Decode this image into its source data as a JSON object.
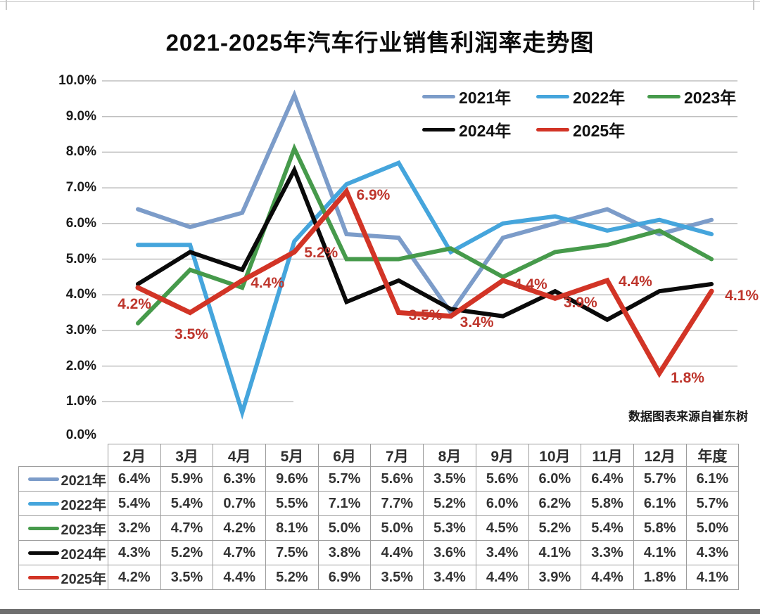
{
  "chart_data": {
    "type": "line",
    "title": "2021-2025年汽车行业销售利润率走势图",
    "categories": [
      "2月",
      "3月",
      "4月",
      "5月",
      "6月",
      "7月",
      "8月",
      "9月",
      "10月",
      "11月",
      "12月",
      "年度"
    ],
    "y_ticks": [
      "10.0%",
      "9.0%",
      "8.0%",
      "7.0%",
      "6.0%",
      "5.0%",
      "4.0%",
      "3.0%",
      "2.0%",
      "1.0%",
      "0.0%"
    ],
    "ylim": [
      0,
      10
    ],
    "grid": "horizontal",
    "legend_position": "top-right-two-rows",
    "legend_rows": [
      [
        "2021年",
        "2022年",
        "2023年"
      ],
      [
        "2024年",
        "2025年"
      ]
    ],
    "source_note": "数据图表来源自崔东树",
    "series": [
      {
        "name": "2021年",
        "color": "#7c9cc9",
        "values": [
          6.4,
          5.9,
          6.3,
          9.6,
          5.7,
          5.6,
          3.5,
          5.6,
          6.0,
          6.4,
          5.7,
          6.1
        ]
      },
      {
        "name": "2022年",
        "color": "#45a5dc",
        "values": [
          5.4,
          5.4,
          0.7,
          5.5,
          7.1,
          7.7,
          5.2,
          6.0,
          6.2,
          5.8,
          6.1,
          5.7
        ]
      },
      {
        "name": "2023年",
        "color": "#469a4b",
        "values": [
          3.2,
          4.7,
          4.2,
          8.1,
          5.0,
          5.0,
          5.3,
          4.5,
          5.2,
          5.4,
          5.8,
          5.0
        ]
      },
      {
        "name": "2024年",
        "color": "#0a0a0a",
        "values": [
          4.3,
          5.2,
          4.7,
          7.5,
          3.8,
          4.4,
          3.6,
          3.4,
          4.1,
          3.3,
          4.1,
          4.3
        ]
      },
      {
        "name": "2025年",
        "color": "#d23426",
        "values": [
          4.2,
          3.5,
          4.4,
          5.2,
          6.9,
          3.5,
          3.4,
          4.4,
          3.9,
          4.4,
          1.8,
          4.1
        ],
        "point_labels": [
          "4.2%",
          "3.5%",
          "4.4%",
          "5.2%",
          "6.9%",
          "3.5%",
          "3.4%",
          "4.4%",
          "3.9%",
          "4.4%",
          "1.8%",
          "4.1%"
        ]
      }
    ]
  },
  "table": {
    "col_headers": [
      "2月",
      "3月",
      "4月",
      "5月",
      "6月",
      "7月",
      "8月",
      "9月",
      "10月",
      "11月",
      "12月",
      "年度"
    ],
    "rows": [
      {
        "label": "2021年",
        "values": [
          "6.4%",
          "5.9%",
          "6.3%",
          "9.6%",
          "5.7%",
          "5.6%",
          "3.5%",
          "5.6%",
          "6.0%",
          "6.4%",
          "5.7%",
          "6.1%"
        ]
      },
      {
        "label": "2022年",
        "values": [
          "5.4%",
          "5.4%",
          "0.7%",
          "5.5%",
          "7.1%",
          "7.7%",
          "5.2%",
          "6.0%",
          "6.2%",
          "5.8%",
          "6.1%",
          "5.7%"
        ]
      },
      {
        "label": "2023年",
        "values": [
          "3.2%",
          "4.7%",
          "4.2%",
          "8.1%",
          "5.0%",
          "5.0%",
          "5.3%",
          "4.5%",
          "5.2%",
          "5.4%",
          "5.8%",
          "5.0%"
        ]
      },
      {
        "label": "2024年",
        "values": [
          "4.3%",
          "5.2%",
          "4.7%",
          "7.5%",
          "3.8%",
          "4.4%",
          "3.6%",
          "3.4%",
          "4.1%",
          "3.3%",
          "4.1%",
          "4.3%"
        ]
      },
      {
        "label": "2025年",
        "values": [
          "4.2%",
          "3.5%",
          "4.4%",
          "5.2%",
          "6.9%",
          "3.5%",
          "3.4%",
          "4.4%",
          "3.9%",
          "4.4%",
          "1.8%",
          "4.1%"
        ]
      }
    ]
  }
}
